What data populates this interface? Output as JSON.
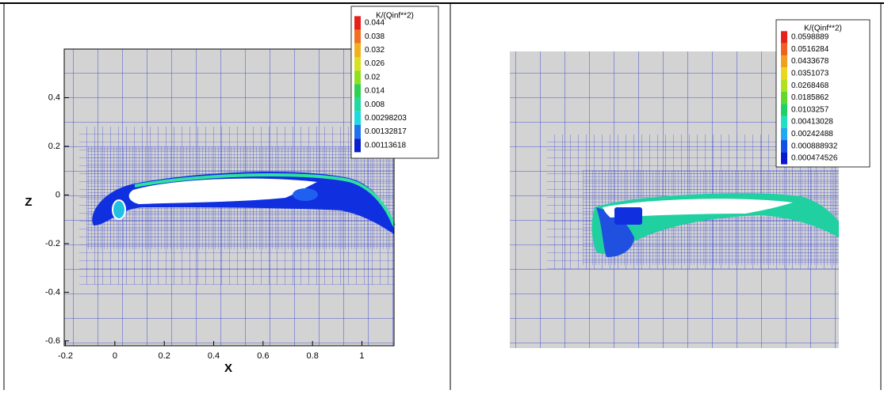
{
  "chart_data": [
    {
      "type": "contour",
      "xlabel": "X",
      "ylabel": "Z",
      "xlim": [
        -0.205,
        1.13
      ],
      "ylim": [
        -0.62,
        0.6
      ],
      "xticks": [
        -0.2,
        0,
        0.2,
        0.4,
        0.6,
        0.8,
        1
      ],
      "yticks": [
        -0.6,
        -0.4,
        -0.2,
        0,
        0.2,
        0.4
      ],
      "colorbar": {
        "title": "K/(Qinf**2)",
        "levels": [
          0.044,
          0.038,
          0.032,
          0.026,
          0.02,
          0.014,
          0.008,
          0.00298203,
          0.00132817,
          0.00113618
        ],
        "colors": [
          "#e8201c",
          "#f07020",
          "#f0b020",
          "#d8e020",
          "#90e020",
          "#30d050",
          "#20d8a0",
          "#20d8e0",
          "#2070f0",
          "#0820d0"
        ]
      }
    },
    {
      "type": "contour",
      "colorbar": {
        "title": "K/(Qinf**2)",
        "levels": [
          0.0598889,
          0.0516284,
          0.0433678,
          0.0351073,
          0.0268468,
          0.0185862,
          0.0103257,
          0.00413028,
          0.00242488,
          0.000888932,
          0.000474526
        ],
        "colors": [
          "#e8201c",
          "#f06020",
          "#f0a020",
          "#e8d820",
          "#b0e020",
          "#60d830",
          "#20d060",
          "#20e0c0",
          "#20a8f0",
          "#1050e8",
          "#0818d0"
        ]
      }
    }
  ]
}
